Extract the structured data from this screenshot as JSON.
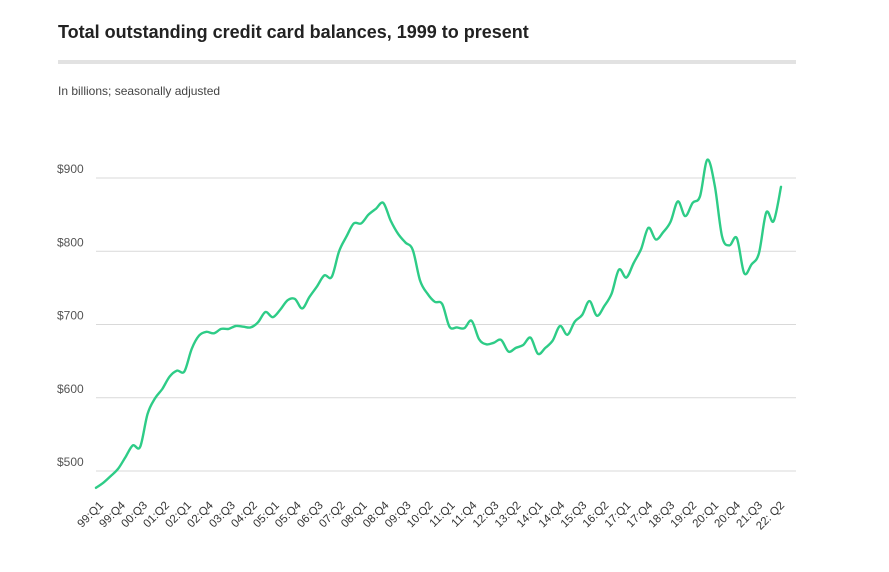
{
  "chart_data": {
    "type": "line",
    "title": "Total outstanding credit card balances, 1999 to present",
    "subtitle": "In billions; seasonally adjusted",
    "xlabel": "",
    "ylabel": "",
    "ylim": [
      460,
      940
    ],
    "yticks": [
      500,
      600,
      700,
      800,
      900
    ],
    "ytick_labels": [
      "$500",
      "$600",
      "$700",
      "$800",
      "$900"
    ],
    "grid": true,
    "x_tick_labels": [
      "99:Q1",
      "99:Q4",
      "00:Q3",
      "01:Q2",
      "02:Q1",
      "02:Q4",
      "03:Q3",
      "04:Q2",
      "05:Q1",
      "05:Q4",
      "06:Q3",
      "07:Q2",
      "08:Q1",
      "08:Q4",
      "09:Q3",
      "10:Q2",
      "11:Q1",
      "11:Q4",
      "12:Q3",
      "13:Q2",
      "14:Q1",
      "14:Q4",
      "15:Q3",
      "16:Q2",
      "17:Q1",
      "17:Q4",
      "18:Q3",
      "19:Q2",
      "20:Q1",
      "20:Q4",
      "21:Q3",
      "22: Q2"
    ],
    "x": [
      "99:Q1",
      "99:Q2",
      "99:Q3",
      "99:Q4",
      "00:Q1",
      "00:Q2",
      "00:Q3",
      "00:Q4",
      "01:Q1",
      "01:Q2",
      "01:Q3",
      "01:Q4",
      "02:Q1",
      "02:Q2",
      "02:Q3",
      "02:Q4",
      "03:Q1",
      "03:Q2",
      "03:Q3",
      "03:Q4",
      "04:Q1",
      "04:Q2",
      "04:Q3",
      "04:Q4",
      "05:Q1",
      "05:Q2",
      "05:Q3",
      "05:Q4",
      "06:Q1",
      "06:Q2",
      "06:Q3",
      "06:Q4",
      "07:Q1",
      "07:Q2",
      "07:Q3",
      "07:Q4",
      "08:Q1",
      "08:Q2",
      "08:Q3",
      "08:Q4",
      "09:Q1",
      "09:Q2",
      "09:Q3",
      "09:Q4",
      "10:Q1",
      "10:Q2",
      "10:Q3",
      "10:Q4",
      "11:Q1",
      "11:Q2",
      "11:Q3",
      "11:Q4",
      "12:Q1",
      "12:Q2",
      "12:Q3",
      "12:Q4",
      "13:Q1",
      "13:Q2",
      "13:Q3",
      "13:Q4",
      "14:Q1",
      "14:Q2",
      "14:Q3",
      "14:Q4",
      "15:Q1",
      "15:Q2",
      "15:Q3",
      "15:Q4",
      "16:Q1",
      "16:Q2",
      "16:Q3",
      "16:Q4",
      "17:Q1",
      "17:Q2",
      "17:Q3",
      "17:Q4",
      "18:Q1",
      "18:Q2",
      "18:Q3",
      "18:Q4",
      "19:Q1",
      "19:Q2",
      "19:Q3",
      "19:Q4",
      "20:Q1",
      "20:Q2",
      "20:Q3",
      "20:Q4",
      "21:Q1",
      "21:Q2",
      "21:Q3",
      "21:Q4",
      "22:Q1",
      "22:Q2"
    ],
    "series": [
      {
        "color": "#2ecc87",
        "values": [
          477,
          484,
          493,
          503,
          519,
          535,
          533,
          578,
          599,
          612,
          629,
          637,
          636,
          667,
          685,
          690,
          688,
          694,
          694,
          698,
          697,
          696,
          703,
          717,
          710,
          720,
          733,
          735,
          722,
          738,
          752,
          767,
          765,
          800,
          820,
          838,
          838,
          850,
          858,
          866,
          842,
          824,
          812,
          802,
          760,
          742,
          731,
          728,
          697,
          696,
          695,
          705,
          680,
          673,
          675,
          679,
          663,
          668,
          672,
          682,
          660,
          668,
          678,
          698,
          686,
          704,
          713,
          732,
          712,
          725,
          742,
          775,
          764,
          784,
          803,
          832,
          816,
          826,
          840,
          868,
          848,
          866,
          875,
          925,
          890,
          820,
          808,
          818,
          770,
          782,
          797,
          853,
          841,
          888
        ]
      }
    ]
  }
}
